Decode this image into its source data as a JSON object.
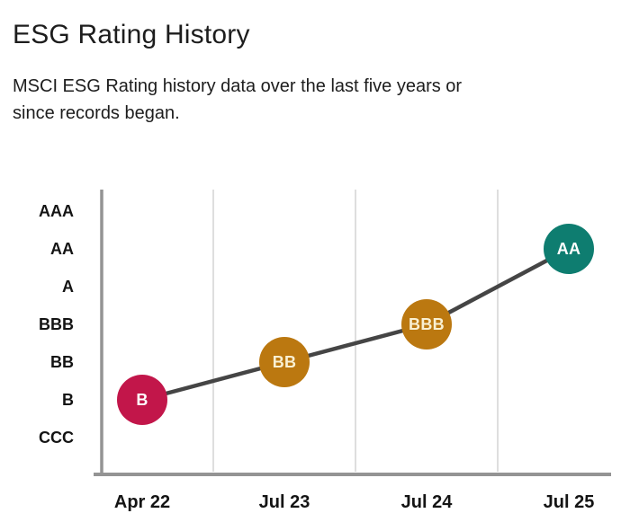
{
  "header": {
    "title": "ESG Rating History",
    "subtitle_lines": [
      "MSCI ESG Rating history data over the last five years or",
      "since records began."
    ]
  },
  "chart_data": {
    "type": "line",
    "title": "ESG Rating History",
    "x": [
      "Apr 22",
      "Jul 23",
      "Jul 24",
      "Jul 25"
    ],
    "y_categories": [
      "AAA",
      "AA",
      "A",
      "BBB",
      "BB",
      "B",
      "CCC"
    ],
    "points": [
      {
        "x": "Apr 22",
        "rating": "B",
        "color": "#c2164a",
        "label_color": "#ffffff"
      },
      {
        "x": "Jul 23",
        "rating": "BB",
        "color": "#bb7810",
        "label_color": "#f9f0d2"
      },
      {
        "x": "Jul 24",
        "rating": "BBB",
        "color": "#bb7810",
        "label_color": "#f9f0d2"
      },
      {
        "x": "Jul 25",
        "rating": "AA",
        "color": "#0e7d70",
        "label_color": "#ffffff"
      }
    ],
    "line_color": "#454545",
    "axis_color": "#949494",
    "gridline_color": "#d3d3d3",
    "tick_label_color": "#141414",
    "grid": "vertical-between-categories",
    "legend": "none"
  }
}
